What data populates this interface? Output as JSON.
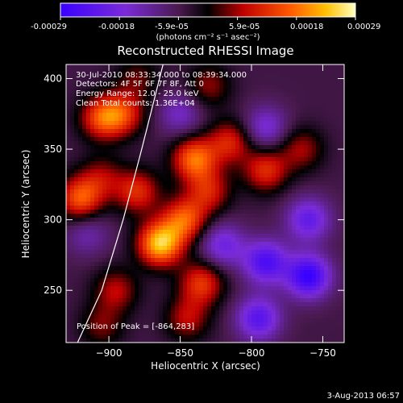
{
  "colorbar": {
    "ticks": [
      "-0.00029",
      "-0.00018",
      "-5.9e-05",
      "5.9e-05",
      "0.00018",
      "0.00029"
    ],
    "units": "(photons cm⁻² s⁻¹ asec⁻²)",
    "range": [
      -0.00029,
      0.00029
    ]
  },
  "chart_data": {
    "type": "heatmap",
    "title": "Reconstructed RHESSI Image",
    "xlabel": "Heliocentric X (arcsec)",
    "ylabel": "Heliocentric Y (arcsec)",
    "xlim": [
      -930,
      -735
    ],
    "ylim": [
      213,
      410
    ],
    "xticks": [
      -900,
      -850,
      -800,
      -750
    ],
    "yticks": [
      250,
      300,
      350,
      400
    ],
    "annotations": [
      "30-Jul-2010 08:33:34.000 to 08:39:34.000",
      "Detectors: 4F 5F 6F 7F 8F, Att 0",
      "Energy Range: 12.0 - 25.0 keV",
      "Clean    Total counts: 1.36E+04"
    ],
    "peak_label": "Position of Peak = [-864,283]",
    "peak": [
      -864,
      283
    ],
    "limb_curve": [
      [
        -922,
        213
      ],
      [
        -905,
        250
      ],
      [
        -890,
        300
      ],
      [
        -877,
        350
      ],
      [
        -870,
        378
      ],
      [
        -862,
        410
      ]
    ],
    "blobs": [
      {
        "x": -864,
        "y": 283,
        "v": 0.00029
      },
      {
        "x": -840,
        "y": 343,
        "v": 0.00022
      },
      {
        "x": -847,
        "y": 300,
        "v": 0.0002
      },
      {
        "x": -830,
        "y": 320,
        "v": 0.00014
      },
      {
        "x": -880,
        "y": 320,
        "v": 0.00016
      },
      {
        "x": -890,
        "y": 375,
        "v": 0.00015
      },
      {
        "x": -905,
        "y": 372,
        "v": 0.00018
      },
      {
        "x": -920,
        "y": 315,
        "v": 0.0002
      },
      {
        "x": -905,
        "y": 330,
        "v": 0.0001
      },
      {
        "x": -835,
        "y": 255,
        "v": 0.00017
      },
      {
        "x": -845,
        "y": 230,
        "v": 0.00012
      },
      {
        "x": -895,
        "y": 250,
        "v": 0.00012
      },
      {
        "x": -905,
        "y": 225,
        "v": 9e-05
      },
      {
        "x": -815,
        "y": 355,
        "v": 0.00015
      },
      {
        "x": -790,
        "y": 335,
        "v": 0.00016
      },
      {
        "x": -765,
        "y": 350,
        "v": 0.00011
      },
      {
        "x": -830,
        "y": 395,
        "v": 0.0001
      },
      {
        "x": -880,
        "y": 400,
        "v": 8e-05
      },
      {
        "x": -790,
        "y": 365,
        "v": -0.00012
      },
      {
        "x": -820,
        "y": 282,
        "v": -0.00014
      },
      {
        "x": -790,
        "y": 270,
        "v": -0.0002
      },
      {
        "x": -760,
        "y": 260,
        "v": -0.00024
      },
      {
        "x": -795,
        "y": 230,
        "v": -0.00018
      },
      {
        "x": -760,
        "y": 300,
        "v": -0.00016
      },
      {
        "x": -850,
        "y": 375,
        "v": -0.0001
      },
      {
        "x": -915,
        "y": 290,
        "v": -8e-05
      }
    ]
  },
  "timestamp": "3-Aug-2013 06:57"
}
